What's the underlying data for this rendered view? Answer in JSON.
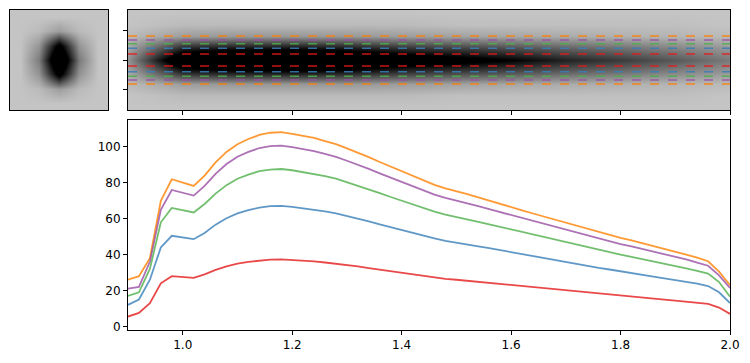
{
  "chart_data": [
    {
      "type": "heatmap",
      "tick_labels": false,
      "x": [
        -6,
        -3,
        0,
        3,
        6
      ],
      "y": [
        -6,
        -4,
        -2,
        0,
        2,
        4,
        6
      ],
      "cells": [
        [
          0,
          0,
          0,
          0,
          0
        ],
        [
          0,
          2,
          8,
          2,
          0
        ],
        [
          0,
          10,
          45,
          10,
          0
        ],
        [
          0,
          15,
          60,
          15,
          0
        ],
        [
          0,
          10,
          45,
          10,
          0
        ],
        [
          0,
          2,
          8,
          2,
          0
        ],
        [
          0,
          0,
          0,
          0,
          0
        ]
      ],
      "zlim": [
        0,
        40
      ],
      "xlim": [
        -7.5,
        7.5
      ],
      "ylim": [
        -7,
        7
      ]
    },
    {
      "type": "heatmap",
      "tick_labels": false,
      "x": [
        0.9,
        1.0,
        1.1,
        1.2,
        1.3,
        1.4,
        1.5,
        1.6,
        1.7,
        1.8,
        1.9,
        2.0
      ],
      "y": [
        -8,
        -6,
        -4,
        -2,
        0,
        2,
        4,
        6,
        8
      ],
      "cells": [
        [
          0,
          0,
          0,
          0,
          0,
          0,
          0,
          0,
          0,
          0,
          0,
          0
        ],
        [
          0,
          2,
          2,
          2,
          2,
          2,
          1,
          1,
          1,
          1,
          1,
          0
        ],
        [
          2,
          8,
          9,
          9,
          9,
          8,
          7,
          6,
          5,
          4,
          3,
          2
        ],
        [
          6,
          33,
          36,
          37,
          35,
          30,
          27,
          24,
          20,
          17,
          13,
          9
        ],
        [
          10,
          55,
          60,
          62,
          58,
          50,
          45,
          40,
          33,
          28,
          22,
          15
        ],
        [
          6,
          33,
          36,
          37,
          35,
          30,
          27,
          24,
          20,
          17,
          13,
          9
        ],
        [
          2,
          8,
          9,
          9,
          9,
          8,
          7,
          6,
          5,
          4,
          3,
          2
        ],
        [
          0,
          2,
          2,
          2,
          2,
          2,
          1,
          1,
          1,
          1,
          1,
          0
        ],
        [
          0,
          0,
          0,
          0,
          0,
          0,
          0,
          0,
          0,
          0,
          0,
          0
        ]
      ],
      "zlim": [
        0,
        40
      ],
      "xlim": [
        0.9,
        2.0
      ],
      "ylim": [
        -8.5,
        8.5
      ],
      "xticks": [
        1.0,
        1.2,
        1.4,
        1.6,
        1.8,
        2.0
      ],
      "yticks": [
        -5,
        0,
        5
      ],
      "line_style": "dashed",
      "hlines": [
        {
          "color": "#ff7f00",
          "values": [
            -4.1,
            4.1
          ]
        },
        {
          "color": "#984ea3",
          "values": [
            -3.4,
            3.4
          ]
        },
        {
          "color": "#4daf4a",
          "values": [
            -2.75,
            2.75
          ]
        },
        {
          "color": "#377eb8",
          "values": [
            -2,
            2
          ]
        },
        {
          "color": "#e41a1c",
          "values": [
            -1,
            1
          ]
        }
      ]
    },
    {
      "type": "line",
      "x": [
        0.9,
        0.92,
        0.94,
        0.96,
        0.98,
        1.0,
        1.02,
        1.04,
        1.06,
        1.08,
        1.1,
        1.12,
        1.14,
        1.16,
        1.18,
        1.2,
        1.22,
        1.24,
        1.26,
        1.28,
        1.3,
        1.32,
        1.34,
        1.36,
        1.38,
        1.4,
        1.42,
        1.44,
        1.46,
        1.48,
        1.5,
        1.52,
        1.54,
        1.56,
        1.58,
        1.6,
        1.62,
        1.64,
        1.66,
        1.68,
        1.7,
        1.72,
        1.74,
        1.76,
        1.78,
        1.8,
        1.82,
        1.84,
        1.86,
        1.88,
        1.9,
        1.92,
        1.94,
        1.96,
        1.98,
        2.0
      ],
      "xlim": [
        0.9,
        2.0
      ],
      "ylim": [
        -2,
        115
      ],
      "xticks": [
        {
          "value": 1.0,
          "label": "1.0"
        },
        {
          "value": 1.2,
          "label": "1.2"
        },
        {
          "value": 1.4,
          "label": "1.4"
        },
        {
          "value": 1.6,
          "label": "1.6"
        },
        {
          "value": 1.8,
          "label": "1.8"
        },
        {
          "value": 2.0,
          "label": "2.0"
        }
      ],
      "yticks": [
        0,
        20,
        40,
        60,
        80,
        100
      ],
      "series": [
        {
          "color": "#ff7f00",
          "values": [
            26,
            28,
            38,
            70,
            82,
            80,
            78.3,
            84,
            91.4,
            97.2,
            101.5,
            104.4,
            106.7,
            107.9,
            108.2,
            107.3,
            106.1,
            105,
            103.2,
            101.5,
            99.2,
            96.9,
            94.3,
            91.6,
            89,
            86.4,
            83.8,
            81.2,
            78.9,
            76.9,
            75.4,
            73.7,
            71.9,
            70.2,
            68.4,
            66.7,
            64.7,
            62.9,
            61.2,
            59.5,
            57.7,
            56,
            54.2,
            52.5,
            51,
            49.3,
            47.9,
            46.4,
            44.7,
            43.2,
            41.8,
            40,
            38.3,
            36.3,
            30.5,
            23
          ]
        },
        {
          "color": "#984ea3",
          "values": [
            21,
            22,
            36,
            65,
            76,
            74.3,
            72.9,
            78.3,
            85,
            90.5,
            94.5,
            97.2,
            99.4,
            100.4,
            100.7,
            99.9,
            98.8,
            97.7,
            96.1,
            94.5,
            92.3,
            90.2,
            87.8,
            85.3,
            82.9,
            80.5,
            78,
            75.6,
            73.4,
            71.6,
            70.2,
            68.6,
            67,
            65.3,
            63.7,
            62.1,
            60.2,
            58.6,
            57,
            55.4,
            53.7,
            52.1,
            50.5,
            48.9,
            47.5,
            45.9,
            44.6,
            43.2,
            41.6,
            40.2,
            38.9,
            37.3,
            35.6,
            33.8,
            28.4,
            21.5
          ]
        },
        {
          "color": "#4daf4a",
          "values": [
            17,
            19,
            32,
            58,
            66,
            64.6,
            63.5,
            68.2,
            74,
            78.7,
            82.3,
            84.6,
            86.5,
            87.4,
            87.7,
            87,
            86,
            85.1,
            83.7,
            82.3,
            80.4,
            78.5,
            76.4,
            74.3,
            72.1,
            70,
            67.9,
            65.8,
            63.9,
            62.3,
            61.1,
            59.7,
            58.3,
            56.9,
            55.5,
            54,
            52.4,
            51,
            49.6,
            48.2,
            46.8,
            45.4,
            43.9,
            42.5,
            41.4,
            40,
            38.8,
            37.6,
            36.2,
            35,
            33.8,
            32.4,
            31,
            29.4,
            24.7,
            16.5
          ]
        },
        {
          "color": "#377eb8",
          "values": [
            12,
            15,
            26,
            44,
            50.5,
            49.5,
            48.6,
            52,
            56.7,
            60.3,
            63,
            64.8,
            66.2,
            67,
            67.1,
            66.6,
            65.9,
            65.2,
            64.1,
            63,
            61.6,
            60.1,
            58.5,
            56.9,
            55.3,
            53.6,
            52,
            50.4,
            49,
            47.7,
            46.8,
            45.7,
            44.6,
            43.6,
            42.5,
            41.4,
            40.1,
            39.1,
            38,
            36.9,
            35.8,
            34.7,
            33.7,
            32.6,
            31.7,
            30.6,
            29.7,
            28.8,
            27.7,
            26.8,
            25.9,
            24.8,
            23.8,
            22.5,
            19,
            13
          ]
        },
        {
          "color": "#e41a1c",
          "values": [
            5.5,
            7.5,
            13,
            24,
            28,
            27.5,
            27,
            29,
            31.5,
            33.5,
            35,
            36,
            36.8,
            37.2,
            37.3,
            37,
            36.6,
            36.2,
            35.6,
            35,
            34.2,
            33.4,
            32.5,
            31.6,
            30.7,
            29.8,
            28.9,
            28,
            27.2,
            26.5,
            26,
            25.4,
            24.8,
            24.2,
            23.6,
            23,
            22.3,
            21.7,
            21.1,
            20.5,
            19.9,
            19.3,
            18.7,
            18.1,
            17.6,
            17,
            16.5,
            16,
            15.4,
            14.9,
            14.4,
            13.8,
            13.2,
            12.5,
            10.5,
            7
          ]
        }
      ]
    }
  ]
}
